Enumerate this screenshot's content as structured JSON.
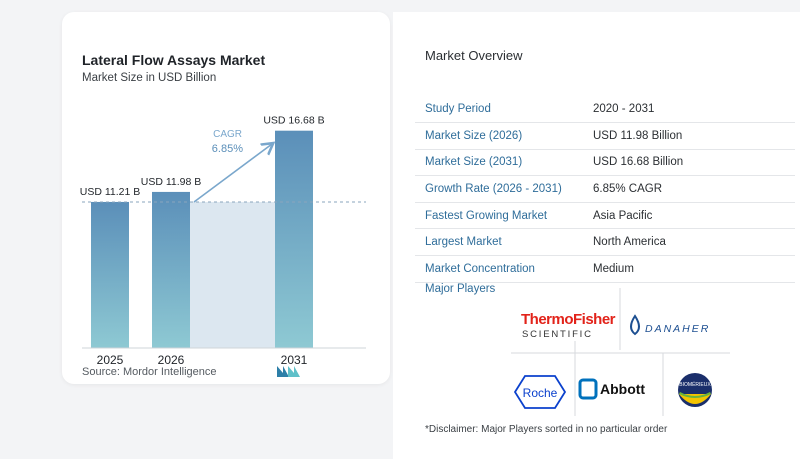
{
  "chart_data": {
    "type": "bar",
    "title": "Lateral Flow Assays Market",
    "subtitle": "Market Size in USD Billion",
    "categories": [
      "2025",
      "2026",
      "2031"
    ],
    "values": [
      11.21,
      11.98,
      16.68
    ],
    "data_labels": [
      "USD 11.21 B",
      "USD 11.98 B",
      "USD 16.68 B"
    ],
    "annotation": {
      "label": "CAGR",
      "value": "6.85%"
    },
    "ylim": [
      0,
      17.5
    ],
    "bar_color": "#5b8fb9",
    "bar_color_light": "#8ec9d3",
    "band_color": "#dce7f0",
    "baseline_value": 11.21
  },
  "source": "Source:  Mordor Intelligence",
  "overview": {
    "title": "Market Overview",
    "rows": [
      {
        "key": "Study Period",
        "value": "2020 - 2031"
      },
      {
        "key": "Market Size (2026)",
        "value": "USD 11.98 Billion"
      },
      {
        "key": "Market Size (2031)",
        "value": "USD 16.68 Billion"
      },
      {
        "key": "Growth Rate (2026 - 2031)",
        "value": "6.85% CAGR"
      },
      {
        "key": "Fastest Growing Market",
        "value": "Asia Pacific"
      },
      {
        "key": "Largest Market",
        "value": "North America"
      },
      {
        "key": "Market Concentration",
        "value": "Medium"
      }
    ],
    "players_title": "Major Players",
    "players": {
      "thermo": [
        "ThermoFisher",
        "SCIENTIFIC"
      ],
      "danaher": "DANAHER",
      "roche": "Roche",
      "abbott": "Abbott",
      "biomerieux": "BIOMÉRIEUX"
    },
    "disclaimer": "*Disclaimer: Major Players sorted in no particular order"
  }
}
